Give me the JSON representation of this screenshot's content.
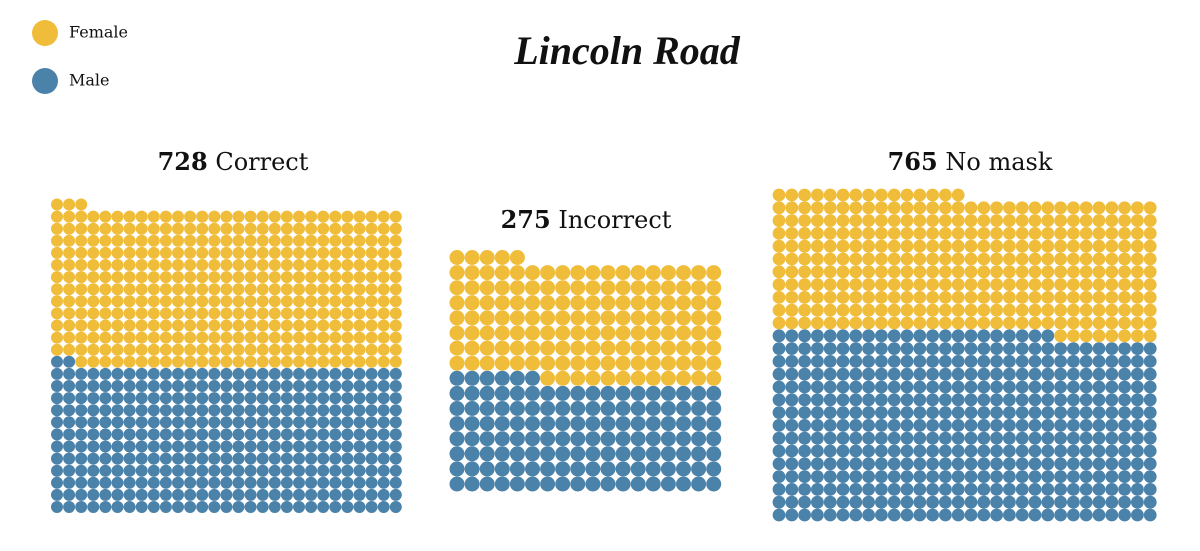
{
  "chart_data": {
    "type": "waffle",
    "title": "Lincoln Road",
    "series": [
      {
        "name": "Female",
        "color": "#f0bd3a"
      },
      {
        "name": "Male",
        "color": "#4b82aa"
      }
    ],
    "groups": [
      {
        "total": 728,
        "label": "Correct",
        "values": [
          378,
          350
        ]
      },
      {
        "total": 275,
        "label": "Incorrect",
        "values": [
          143,
          132
        ]
      },
      {
        "total": 765,
        "label": "No mask",
        "values": [
          323,
          442
        ]
      }
    ]
  }
}
